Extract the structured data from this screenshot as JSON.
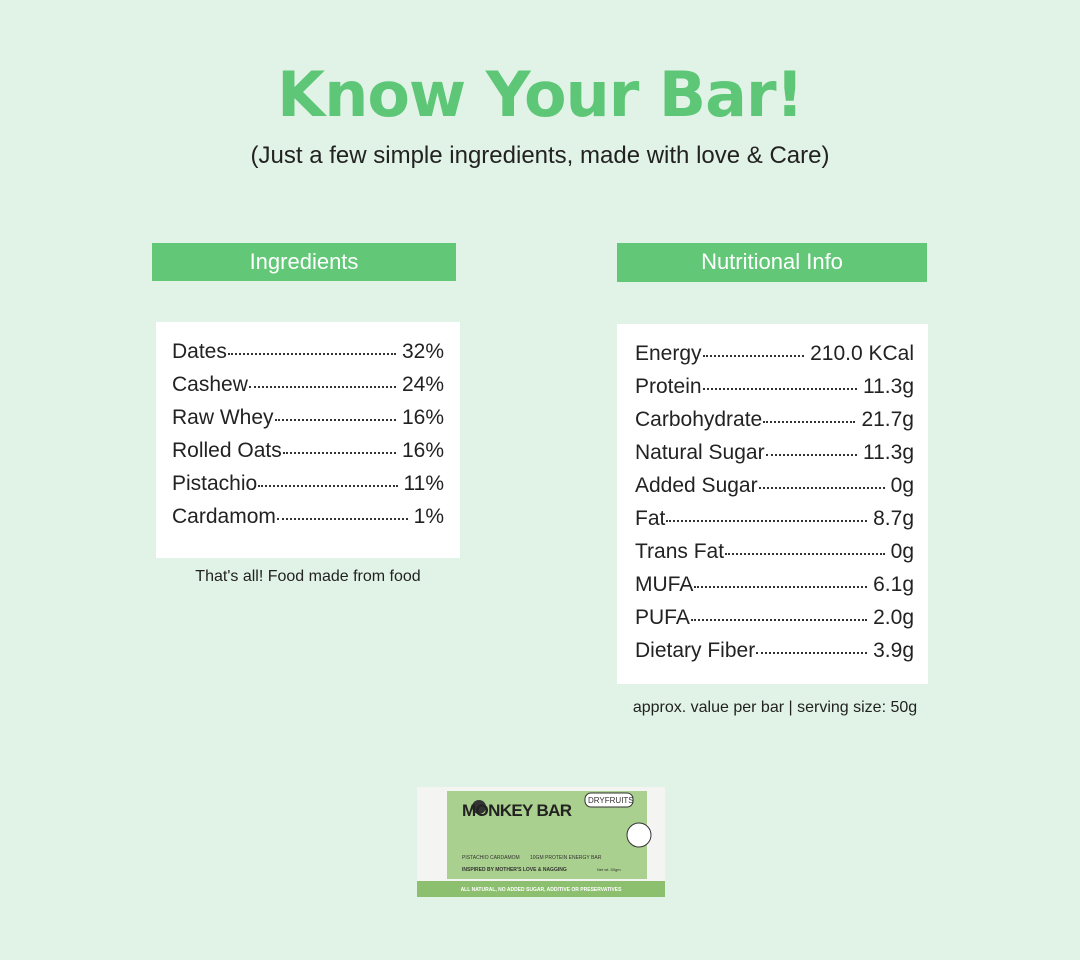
{
  "header": {
    "title": "Know Your Bar!",
    "subtitle": "(Just a few simple ingredients, made with love & Care)"
  },
  "ingredients": {
    "heading": "Ingredients",
    "rows": [
      [
        "Dates",
        "32%"
      ],
      [
        "Cashew",
        "24%"
      ],
      [
        "Raw Whey",
        "16%"
      ],
      [
        "Rolled Oats",
        "16%"
      ],
      [
        "Pistachio",
        "11%"
      ],
      [
        "Cardamom",
        "1%"
      ]
    ],
    "note": "That's all! Food made from food"
  },
  "nutrition": {
    "heading": "Nutritional Info",
    "rows": [
      [
        "Energy",
        "210.0 KCal"
      ],
      [
        "Protein",
        "11.3g"
      ],
      [
        "Carbohydrate",
        "21.7g"
      ],
      [
        "Natural Sugar",
        "11.3g"
      ],
      [
        "Added Sugar",
        "0g"
      ],
      [
        "Fat",
        "8.7g"
      ],
      [
        "Trans Fat",
        "0g"
      ],
      [
        "MUFA",
        "6.1g"
      ],
      [
        "PUFA",
        "2.0g"
      ],
      [
        "Dietary Fiber",
        "3.9g"
      ]
    ],
    "note": "approx. value per bar | serving size: 50g"
  },
  "product": {
    "brand": "MONKEY BAR",
    "badge": "DRYFRUITS",
    "flavor": "PISTACHIO CARDAMOM",
    "protein": "10GM PROTEIN ENERGY BAR",
    "tagline": "INSPIRED BY MOTHER'S LOVE & NAGGING",
    "weight": "Net wt. 50gm",
    "footer": "ALL NATURAL, NO ADDED SUGAR, ADDITIVE OR PRESERVATIVES"
  }
}
